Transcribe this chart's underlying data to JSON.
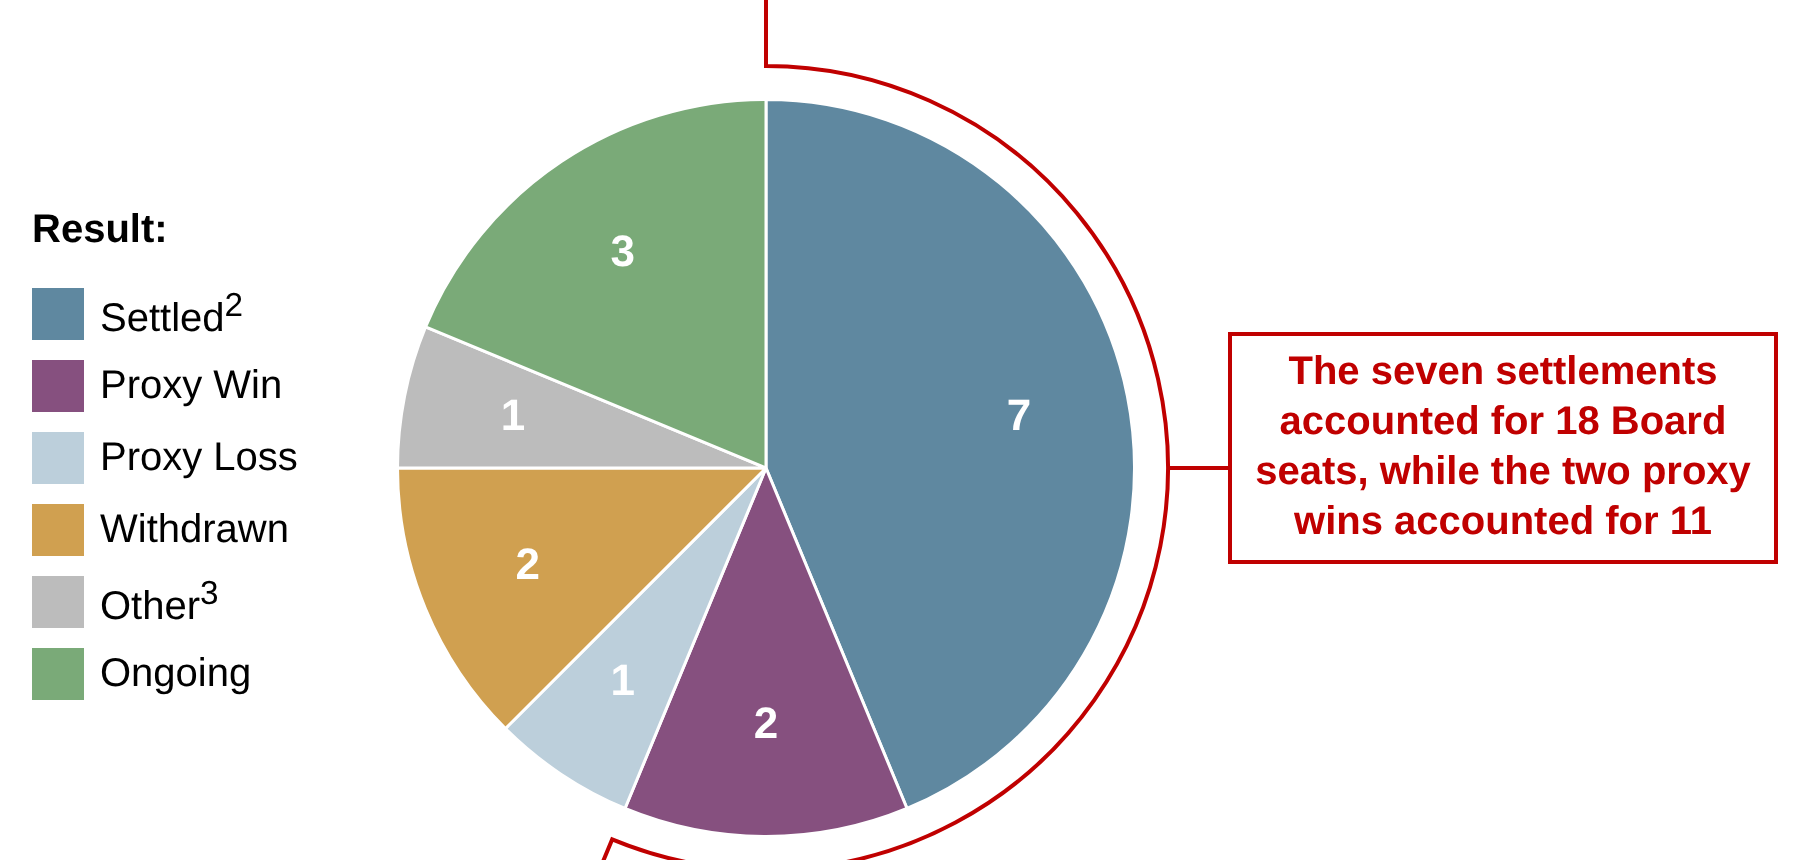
{
  "chart_data": {
    "type": "pie",
    "legend_title": "Result:",
    "legend": "left",
    "data_labels": true,
    "categories": [
      "Settled$^{2}$",
      "Proxy Win",
      "Proxy Loss",
      "Withdrawn",
      "Other$^{3}$",
      "Ongoing"
    ],
    "values": [
      7,
      2,
      1,
      2,
      1,
      3
    ],
    "colors": [
      "#5f88a0",
      "#86507f",
      "#bccfdb",
      "#d0a050",
      "#bcbcbc",
      "#7aaa78"
    ],
    "annotations": [
      "The seven settlements accounted for 18 Board seats, while the two proxy wins accounted for 11"
    ]
  }
}
